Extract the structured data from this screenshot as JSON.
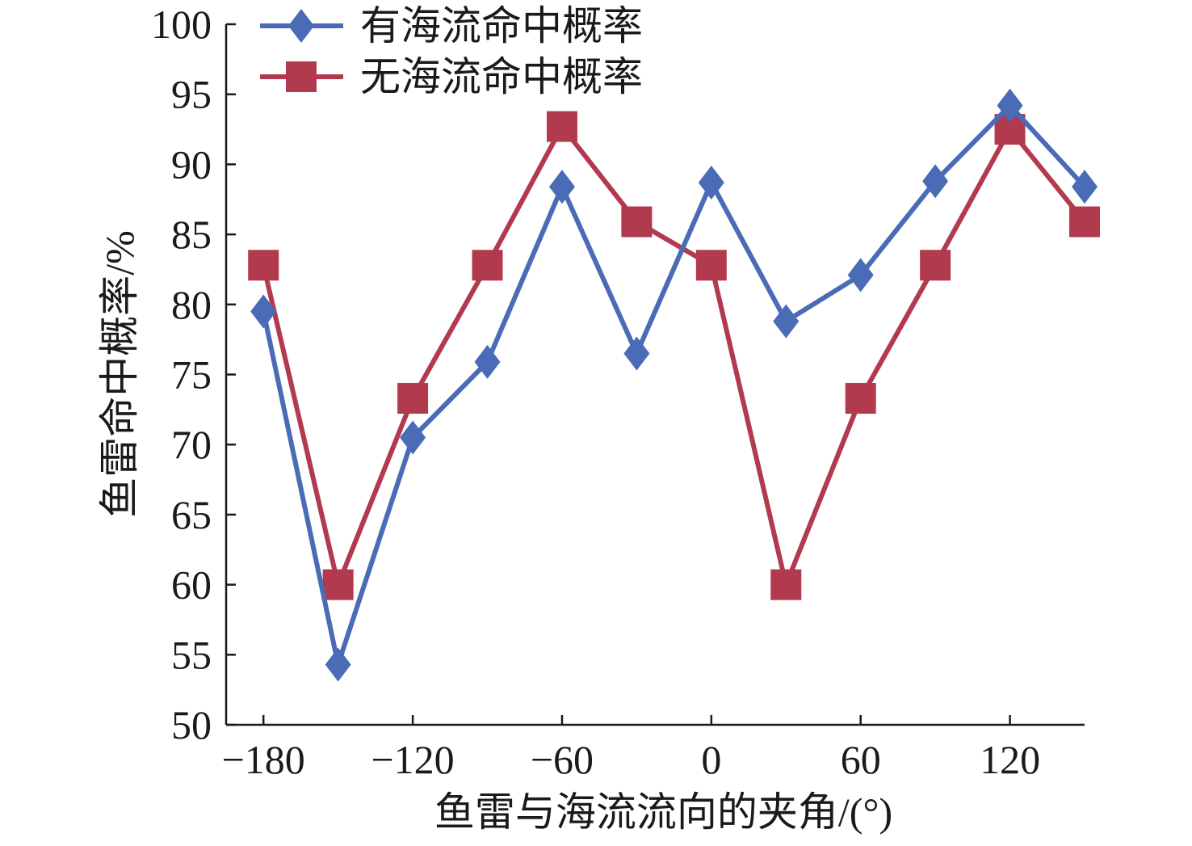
{
  "chart_data": {
    "type": "line",
    "title": "",
    "xlabel": "鱼雷与海流流向的夹角/(°)",
    "ylabel": "鱼雷命中概率/%",
    "xlim": [
      -195,
      150
    ],
    "ylim": [
      50,
      100
    ],
    "xticks": [
      -180,
      -120,
      -60,
      0,
      60,
      120
    ],
    "xtick_labels": [
      "−180",
      "−120",
      "−60",
      "0",
      "60",
      "120"
    ],
    "yticks": [
      50,
      55,
      60,
      65,
      70,
      75,
      80,
      85,
      90,
      95,
      100
    ],
    "ytick_labels": [
      "50",
      "55",
      "60",
      "65",
      "70",
      "75",
      "80",
      "85",
      "90",
      "95",
      "100"
    ],
    "grid": false,
    "legend_position": "top-left",
    "x": [
      -180,
      -150,
      -120,
      -90,
      -60,
      -30,
      0,
      30,
      60,
      90,
      120,
      150
    ],
    "series": [
      {
        "name": "有海流命中概率",
        "color": "#4a6bb5",
        "marker": "diamond",
        "values": [
          79.5,
          54.3,
          70.5,
          75.9,
          88.4,
          76.5,
          88.7,
          78.8,
          82.1,
          88.8,
          94.2,
          88.4
        ]
      },
      {
        "name": "无海流命中概率",
        "color": "#b23a4e",
        "marker": "square",
        "values": [
          82.8,
          60.0,
          73.3,
          82.8,
          92.7,
          85.9,
          82.8,
          60.0,
          73.3,
          82.8,
          92.5,
          85.9
        ]
      }
    ]
  }
}
